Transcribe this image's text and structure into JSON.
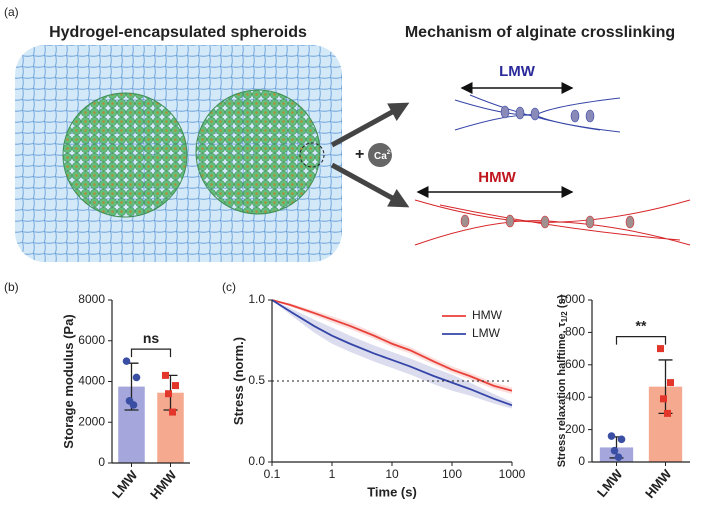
{
  "panel_labels": [
    "(a)",
    "(b)",
    "(c)"
  ],
  "illustration": {
    "left_title": "Hydrogel-encapsulated spheroids",
    "right_title": "Mechanism of alginate crosslinking",
    "plus": "+",
    "ion": "Ca",
    "ion_charge": "2+",
    "lmw": "LMW",
    "hmw": "HMW"
  },
  "chart_data": [
    {
      "type": "bar",
      "ylabel": "Storage modulus (Pa)",
      "categories": [
        "LMW",
        "HMW"
      ],
      "values": [
        3750,
        3450
      ],
      "errors": [
        1150,
        850
      ],
      "points": [
        [
          5000,
          4200,
          3050,
          2850
        ],
        [
          4300,
          3800,
          3400,
          2500
        ]
      ],
      "colors": [
        "#a5a7dc",
        "#f5a98e"
      ],
      "point_colors": [
        "#3a4ea3",
        "#e2362a"
      ],
      "markers": [
        "circle",
        "square"
      ],
      "annotation": "ns",
      "ylim": [
        0,
        8000
      ],
      "yticks": [
        0,
        2000,
        4000,
        6000,
        8000
      ]
    },
    {
      "type": "line",
      "xlabel": "Time (s)",
      "ylabel": "Stress (norm.)",
      "xscale": "log",
      "x": [
        0.1,
        0.2,
        0.5,
        1,
        2,
        5,
        10,
        20,
        50,
        100,
        200,
        500,
        1000
      ],
      "series": [
        {
          "name": "HMW",
          "color": "#e8413a",
          "values": [
            1.0,
            0.97,
            0.92,
            0.88,
            0.84,
            0.78,
            0.73,
            0.69,
            0.62,
            0.57,
            0.53,
            0.47,
            0.44
          ],
          "errors": [
            0,
            0.01,
            0.015,
            0.02,
            0.02,
            0.02,
            0.02,
            0.02,
            0.02,
            0.02,
            0.02,
            0.02,
            0.02
          ]
        },
        {
          "name": "LMW",
          "color": "#3545a8",
          "values": [
            1.0,
            0.93,
            0.84,
            0.78,
            0.73,
            0.67,
            0.63,
            0.59,
            0.53,
            0.49,
            0.45,
            0.39,
            0.35
          ],
          "errors": [
            0,
            0.02,
            0.04,
            0.05,
            0.05,
            0.05,
            0.05,
            0.05,
            0.05,
            0.05,
            0.04,
            0.03,
            0.02
          ]
        }
      ],
      "hline": 0.5,
      "legend": "upper right",
      "xlim": [
        0.1,
        1000
      ],
      "xticks": [
        0.1,
        1,
        10,
        100,
        1000
      ],
      "ylim": [
        0,
        1
      ],
      "yticks": [
        {
          "value": 0,
          "label": "0.0"
        },
        0.5,
        {
          "value": 1,
          "label": "1.0"
        }
      ]
    },
    {
      "type": "bar",
      "ylabel": "Stress relaxation halftime, τ",
      "ylabel_sub": "1/2",
      "ylabel_unit": "(s)",
      "categories": [
        "LMW",
        "HMW"
      ],
      "values": [
        90,
        465
      ],
      "errors": [
        65,
        165
      ],
      "points": [
        [
          160,
          140,
          70,
          30
        ],
        [
          700,
          490,
          390,
          300
        ]
      ],
      "colors": [
        "#a5a7dc",
        "#f5a98e"
      ],
      "point_colors": [
        "#3a4ea3",
        "#e2362a"
      ],
      "markers": [
        "circle",
        "square"
      ],
      "annotation": "**",
      "ylim": [
        0,
        1000
      ],
      "yticks": [
        0,
        200,
        400,
        600,
        800,
        1000
      ]
    }
  ]
}
